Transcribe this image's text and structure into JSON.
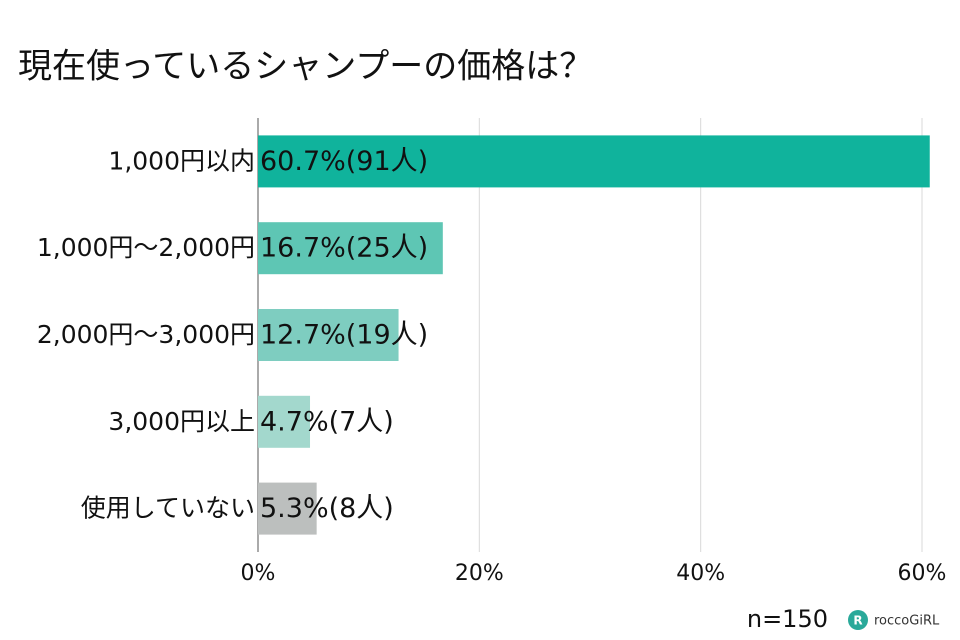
{
  "chart_data": {
    "type": "hbar",
    "title": "現在使っているシャンプーの価格は？",
    "categories": [
      "1,000円以内",
      "1,000円〜2,000円",
      "2,000円〜3,000円",
      "3,000円以上",
      "使用していない"
    ],
    "values": [
      60.7,
      16.7,
      12.7,
      4.7,
      5.3
    ],
    "value_labels": [
      "60.7%(91人)",
      "16.7%(25人)",
      "12.7%(19人)",
      "4.7%(7人)",
      "5.3%(8人)"
    ],
    "colors": [
      "#10b39c",
      "#5ec6b4",
      "#7ecdc0",
      "#a3d8cd",
      "#bcbfbe"
    ],
    "xlim": [
      0,
      60
    ],
    "xticks": [
      {
        "value": 0,
        "label": "0%"
      },
      {
        "value": 20,
        "label": "20%"
      },
      {
        "value": 40,
        "label": "40%"
      },
      {
        "value": 60,
        "label": "60%"
      }
    ],
    "grid": true,
    "note": "n=150",
    "brand": "roccoGiRL"
  }
}
